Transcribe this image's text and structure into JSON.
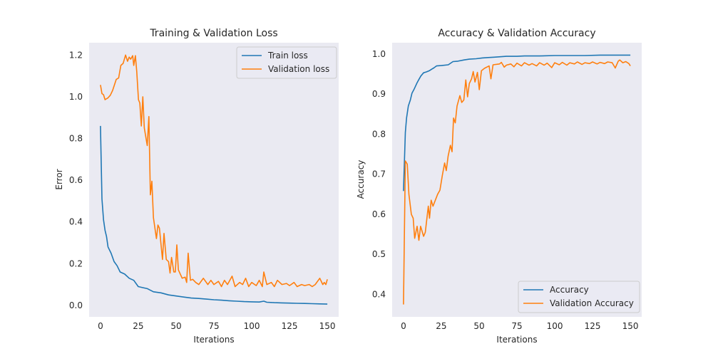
{
  "colors": {
    "background": "#eaeaf2",
    "train": "#1f77b4",
    "validation": "#ff7f0e"
  },
  "chart_data": [
    {
      "type": "line",
      "title": "Training & Validation Loss",
      "xlabel": "Iterations",
      "ylabel": "Error",
      "xlim": [
        -7.5,
        157.5
      ],
      "ylim": [
        -0.055,
        1.259
      ],
      "xticks": [
        0,
        25,
        50,
        75,
        100,
        125,
        150
      ],
      "xtick_labels": [
        "0",
        "25",
        "50",
        "75",
        "100",
        "125",
        "150"
      ],
      "yticks": [
        0.0,
        0.2,
        0.4,
        0.6,
        0.8,
        1.0,
        1.2
      ],
      "ytick_labels": [
        "0.0",
        "0.2",
        "0.4",
        "0.6",
        "0.8",
        "1.0",
        "1.2"
      ],
      "grid": false,
      "legend_position": "top-right",
      "series": [
        {
          "name": "Train loss",
          "color": "#1f77b4",
          "points": [
            [
              0,
              0.86
            ],
            [
              1,
              0.51
            ],
            [
              2,
              0.41
            ],
            [
              3,
              0.36
            ],
            [
              4,
              0.33
            ],
            [
              5,
              0.28
            ],
            [
              7,
              0.25
            ],
            [
              9,
              0.21
            ],
            [
              11,
              0.19
            ],
            [
              13,
              0.16
            ],
            [
              16,
              0.15
            ],
            [
              19,
              0.13
            ],
            [
              22,
              0.12
            ],
            [
              25,
              0.09
            ],
            [
              28,
              0.085
            ],
            [
              31,
              0.08
            ],
            [
              35,
              0.065
            ],
            [
              40,
              0.06
            ],
            [
              45,
              0.05
            ],
            [
              50,
              0.045
            ],
            [
              55,
              0.04
            ],
            [
              60,
              0.035
            ],
            [
              65,
              0.033
            ],
            [
              70,
              0.03
            ],
            [
              75,
              0.027
            ],
            [
              80,
              0.025
            ],
            [
              85,
              0.022
            ],
            [
              90,
              0.02
            ],
            [
              95,
              0.018
            ],
            [
              100,
              0.017
            ],
            [
              105,
              0.016
            ],
            [
              108,
              0.02
            ],
            [
              110,
              0.015
            ],
            [
              115,
              0.013
            ],
            [
              120,
              0.012
            ],
            [
              125,
              0.011
            ],
            [
              130,
              0.01
            ],
            [
              135,
              0.009
            ],
            [
              140,
              0.008
            ],
            [
              145,
              0.007
            ],
            [
              150,
              0.006
            ]
          ]
        },
        {
          "name": "Validation loss",
          "color": "#ff7f0e",
          "points": [
            [
              0,
              1.057
            ],
            [
              1,
              1.015
            ],
            [
              2,
              1.01
            ],
            [
              3,
              0.986
            ],
            [
              5,
              0.995
            ],
            [
              6.5,
              1.007
            ],
            [
              8,
              1.03
            ],
            [
              10.4,
              1.083
            ],
            [
              12,
              1.09
            ],
            [
              13.5,
              1.15
            ],
            [
              15,
              1.16
            ],
            [
              16.6,
              1.2
            ],
            [
              17.9,
              1.17
            ],
            [
              19,
              1.19
            ],
            [
              20,
              1.18
            ],
            [
              21.3,
              1.197
            ],
            [
              22,
              1.15
            ],
            [
              23.1,
              1.197
            ],
            [
              24,
              1.12
            ],
            [
              25.1,
              0.986
            ],
            [
              26,
              0.97
            ],
            [
              27,
              0.86
            ],
            [
              28,
              1.0
            ],
            [
              29,
              0.85
            ],
            [
              30.9,
              0.766
            ],
            [
              32,
              0.905
            ],
            [
              33,
              0.53
            ],
            [
              34,
              0.595
            ],
            [
              35,
              0.42
            ],
            [
              36,
              0.37
            ],
            [
              37,
              0.32
            ],
            [
              38,
              0.385
            ],
            [
              39,
              0.37
            ],
            [
              41,
              0.22
            ],
            [
              42,
              0.345
            ],
            [
              43.5,
              0.22
            ],
            [
              45,
              0.21
            ],
            [
              46,
              0.155
            ],
            [
              47,
              0.23
            ],
            [
              48.5,
              0.16
            ],
            [
              49.5,
              0.16
            ],
            [
              50.5,
              0.29
            ],
            [
              51.5,
              0.17
            ],
            [
              54,
              0.13
            ],
            [
              56,
              0.135
            ],
            [
              57,
              0.11
            ],
            [
              58,
              0.25
            ],
            [
              59.5,
              0.12
            ],
            [
              61,
              0.125
            ],
            [
              63,
              0.11
            ],
            [
              65,
              0.1
            ],
            [
              68,
              0.13
            ],
            [
              71,
              0.1
            ],
            [
              73,
              0.12
            ],
            [
              75,
              0.1
            ],
            [
              78,
              0.115
            ],
            [
              80,
              0.09
            ],
            [
              82,
              0.12
            ],
            [
              84,
              0.1
            ],
            [
              87,
              0.14
            ],
            [
              89,
              0.09
            ],
            [
              92,
              0.11
            ],
            [
              94,
              0.1
            ],
            [
              96,
              0.13
            ],
            [
              98,
              0.09
            ],
            [
              100,
              0.11
            ],
            [
              103,
              0.095
            ],
            [
              105,
              0.12
            ],
            [
              107,
              0.09
            ],
            [
              108,
              0.16
            ],
            [
              110,
              0.1
            ],
            [
              113,
              0.11
            ],
            [
              115,
              0.09
            ],
            [
              117,
              0.12
            ],
            [
              120,
              0.1
            ],
            [
              123,
              0.105
            ],
            [
              125,
              0.095
            ],
            [
              128,
              0.11
            ],
            [
              130,
              0.09
            ],
            [
              133,
              0.1
            ],
            [
              135,
              0.095
            ],
            [
              138,
              0.1
            ],
            [
              140,
              0.09
            ],
            [
              142,
              0.1
            ],
            [
              145,
              0.13
            ],
            [
              147,
              0.1
            ],
            [
              148,
              0.11
            ],
            [
              149,
              0.1
            ],
            [
              150,
              0.125
            ]
          ]
        }
      ]
    },
    {
      "type": "line",
      "title": "Accuracy & Validation Accuracy",
      "xlabel": "Iterations",
      "ylabel": "Accuracy",
      "xlim": [
        -7.5,
        157.5
      ],
      "ylim": [
        0.344,
        1.028
      ],
      "xticks": [
        0,
        25,
        50,
        75,
        100,
        125,
        150
      ],
      "xtick_labels": [
        "0",
        "25",
        "50",
        "75",
        "100",
        "125",
        "150"
      ],
      "yticks": [
        0.4,
        0.5,
        0.6,
        0.7,
        0.8,
        0.9,
        1.0
      ],
      "ytick_labels": [
        "0.4",
        "0.5",
        "0.6",
        "0.7",
        "0.8",
        "0.9",
        "1.0"
      ],
      "grid": false,
      "legend_position": "bottom-right",
      "series": [
        {
          "name": "Accuracy",
          "color": "#1f77b4",
          "points": [
            [
              0,
              0.658
            ],
            [
              1.2,
              0.804
            ],
            [
              2,
              0.84
            ],
            [
              3.2,
              0.87
            ],
            [
              4.5,
              0.885
            ],
            [
              5.6,
              0.902
            ],
            [
              7,
              0.912
            ],
            [
              8.7,
              0.926
            ],
            [
              10,
              0.935
            ],
            [
              11.5,
              0.945
            ],
            [
              13.3,
              0.953
            ],
            [
              15,
              0.955
            ],
            [
              17,
              0.958
            ],
            [
              18.7,
              0.962
            ],
            [
              20,
              0.965
            ],
            [
              21.8,
              0.97
            ],
            [
              25,
              0.971
            ],
            [
              29.6,
              0.973
            ],
            [
              32.7,
              0.981
            ],
            [
              36,
              0.982
            ],
            [
              40,
              0.985
            ],
            [
              43.5,
              0.987
            ],
            [
              48,
              0.988
            ],
            [
              52,
              0.99
            ],
            [
              56,
              0.991
            ],
            [
              60,
              0.992
            ],
            [
              64,
              0.993
            ],
            [
              68,
              0.994
            ],
            [
              75,
              0.994
            ],
            [
              80,
              0.995
            ],
            [
              90,
              0.995
            ],
            [
              100,
              0.996
            ],
            [
              110,
              0.996
            ],
            [
              120,
              0.996
            ],
            [
              130,
              0.997
            ],
            [
              140,
              0.997
            ],
            [
              150,
              0.997
            ]
          ]
        },
        {
          "name": "Validation Accuracy",
          "color": "#ff7f0e",
          "points": [
            [
              0,
              0.375
            ],
            [
              1.2,
              0.733
            ],
            [
              2.5,
              0.725
            ],
            [
              3.6,
              0.65
            ],
            [
              5.2,
              0.6
            ],
            [
              6.4,
              0.59
            ],
            [
              7.4,
              0.54
            ],
            [
              9,
              0.57
            ],
            [
              10.2,
              0.535
            ],
            [
              11.3,
              0.57
            ],
            [
              13.3,
              0.545
            ],
            [
              14.4,
              0.555
            ],
            [
              16.4,
              0.62
            ],
            [
              17.2,
              0.59
            ],
            [
              18.3,
              0.635
            ],
            [
              19.5,
              0.62
            ],
            [
              22.6,
              0.65
            ],
            [
              24.1,
              0.66
            ],
            [
              25.7,
              0.697
            ],
            [
              27.2,
              0.728
            ],
            [
              28.3,
              0.709
            ],
            [
              29.5,
              0.745
            ],
            [
              31,
              0.772
            ],
            [
              32.1,
              0.756
            ],
            [
              33.1,
              0.84
            ],
            [
              34.2,
              0.828
            ],
            [
              35.4,
              0.87
            ],
            [
              37.3,
              0.896
            ],
            [
              38.5,
              0.879
            ],
            [
              39.9,
              0.885
            ],
            [
              41.2,
              0.935
            ],
            [
              42.4,
              0.893
            ],
            [
              43.5,
              0.926
            ],
            [
              45,
              0.938
            ],
            [
              46.1,
              0.956
            ],
            [
              47.3,
              0.93
            ],
            [
              48.9,
              0.954
            ],
            [
              50.1,
              0.911
            ],
            [
              51.5,
              0.958
            ],
            [
              53.5,
              0.964
            ],
            [
              56.6,
              0.97
            ],
            [
              57.8,
              0.938
            ],
            [
              59.2,
              0.973
            ],
            [
              63.5,
              0.975
            ],
            [
              64.7,
              0.979
            ],
            [
              66.6,
              0.967
            ],
            [
              68,
              0.972
            ],
            [
              71,
              0.975
            ],
            [
              73,
              0.968
            ],
            [
              75,
              0.977
            ],
            [
              78,
              0.97
            ],
            [
              80,
              0.978
            ],
            [
              83,
              0.972
            ],
            [
              85,
              0.976
            ],
            [
              88,
              0.97
            ],
            [
              90,
              0.978
            ],
            [
              93,
              0.972
            ],
            [
              95,
              0.977
            ],
            [
              98,
              0.966
            ],
            [
              100,
              0.978
            ],
            [
              103,
              0.973
            ],
            [
              105,
              0.979
            ],
            [
              108,
              0.972
            ],
            [
              110,
              0.978
            ],
            [
              113,
              0.975
            ],
            [
              115,
              0.98
            ],
            [
              118,
              0.974
            ],
            [
              120,
              0.978
            ],
            [
              123,
              0.976
            ],
            [
              125,
              0.98
            ],
            [
              128,
              0.975
            ],
            [
              130,
              0.979
            ],
            [
              133,
              0.976
            ],
            [
              135,
              0.98
            ],
            [
              138,
              0.978
            ],
            [
              140,
              0.965
            ],
            [
              142,
              0.982
            ],
            [
              143,
              0.985
            ],
            [
              145,
              0.978
            ],
            [
              147,
              0.981
            ],
            [
              149,
              0.976
            ],
            [
              150,
              0.97
            ]
          ]
        }
      ]
    }
  ]
}
